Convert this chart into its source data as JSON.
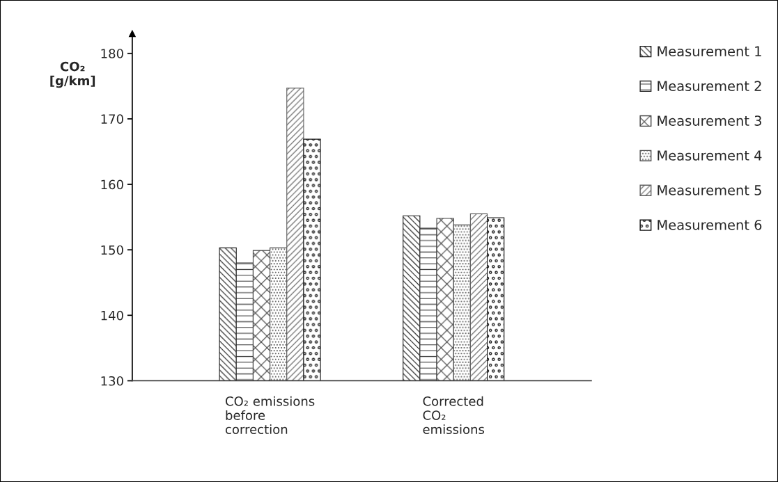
{
  "chart_data": {
    "type": "bar",
    "ylabel": "CO₂\n[g/km]",
    "categories": [
      "CO₂ emissions\nbefore\ncorrection",
      "Corrected\nCO₂\nemissions"
    ],
    "series": [
      {
        "name": "Measurement 1",
        "color": "#202020",
        "values": [
          150.3,
          155.2
        ]
      },
      {
        "name": "Measurement 2",
        "color": "#303030",
        "values": [
          148.0,
          153.3
        ]
      },
      {
        "name": "Measurement 3",
        "color": "#404040",
        "values": [
          149.9,
          154.8
        ]
      },
      {
        "name": "Measurement 4",
        "color": "#505050",
        "values": [
          150.3,
          153.8
        ]
      },
      {
        "name": "Measurement 5",
        "color": "#606060",
        "values": [
          174.7,
          155.5
        ]
      },
      {
        "name": "Measurement 6",
        "color": "#101010",
        "values": [
          166.9,
          154.9
        ]
      }
    ],
    "ylim": [
      130,
      183
    ],
    "yticks": [
      130,
      140,
      150,
      160,
      170,
      180
    ],
    "grid": false,
    "legend": "right"
  }
}
